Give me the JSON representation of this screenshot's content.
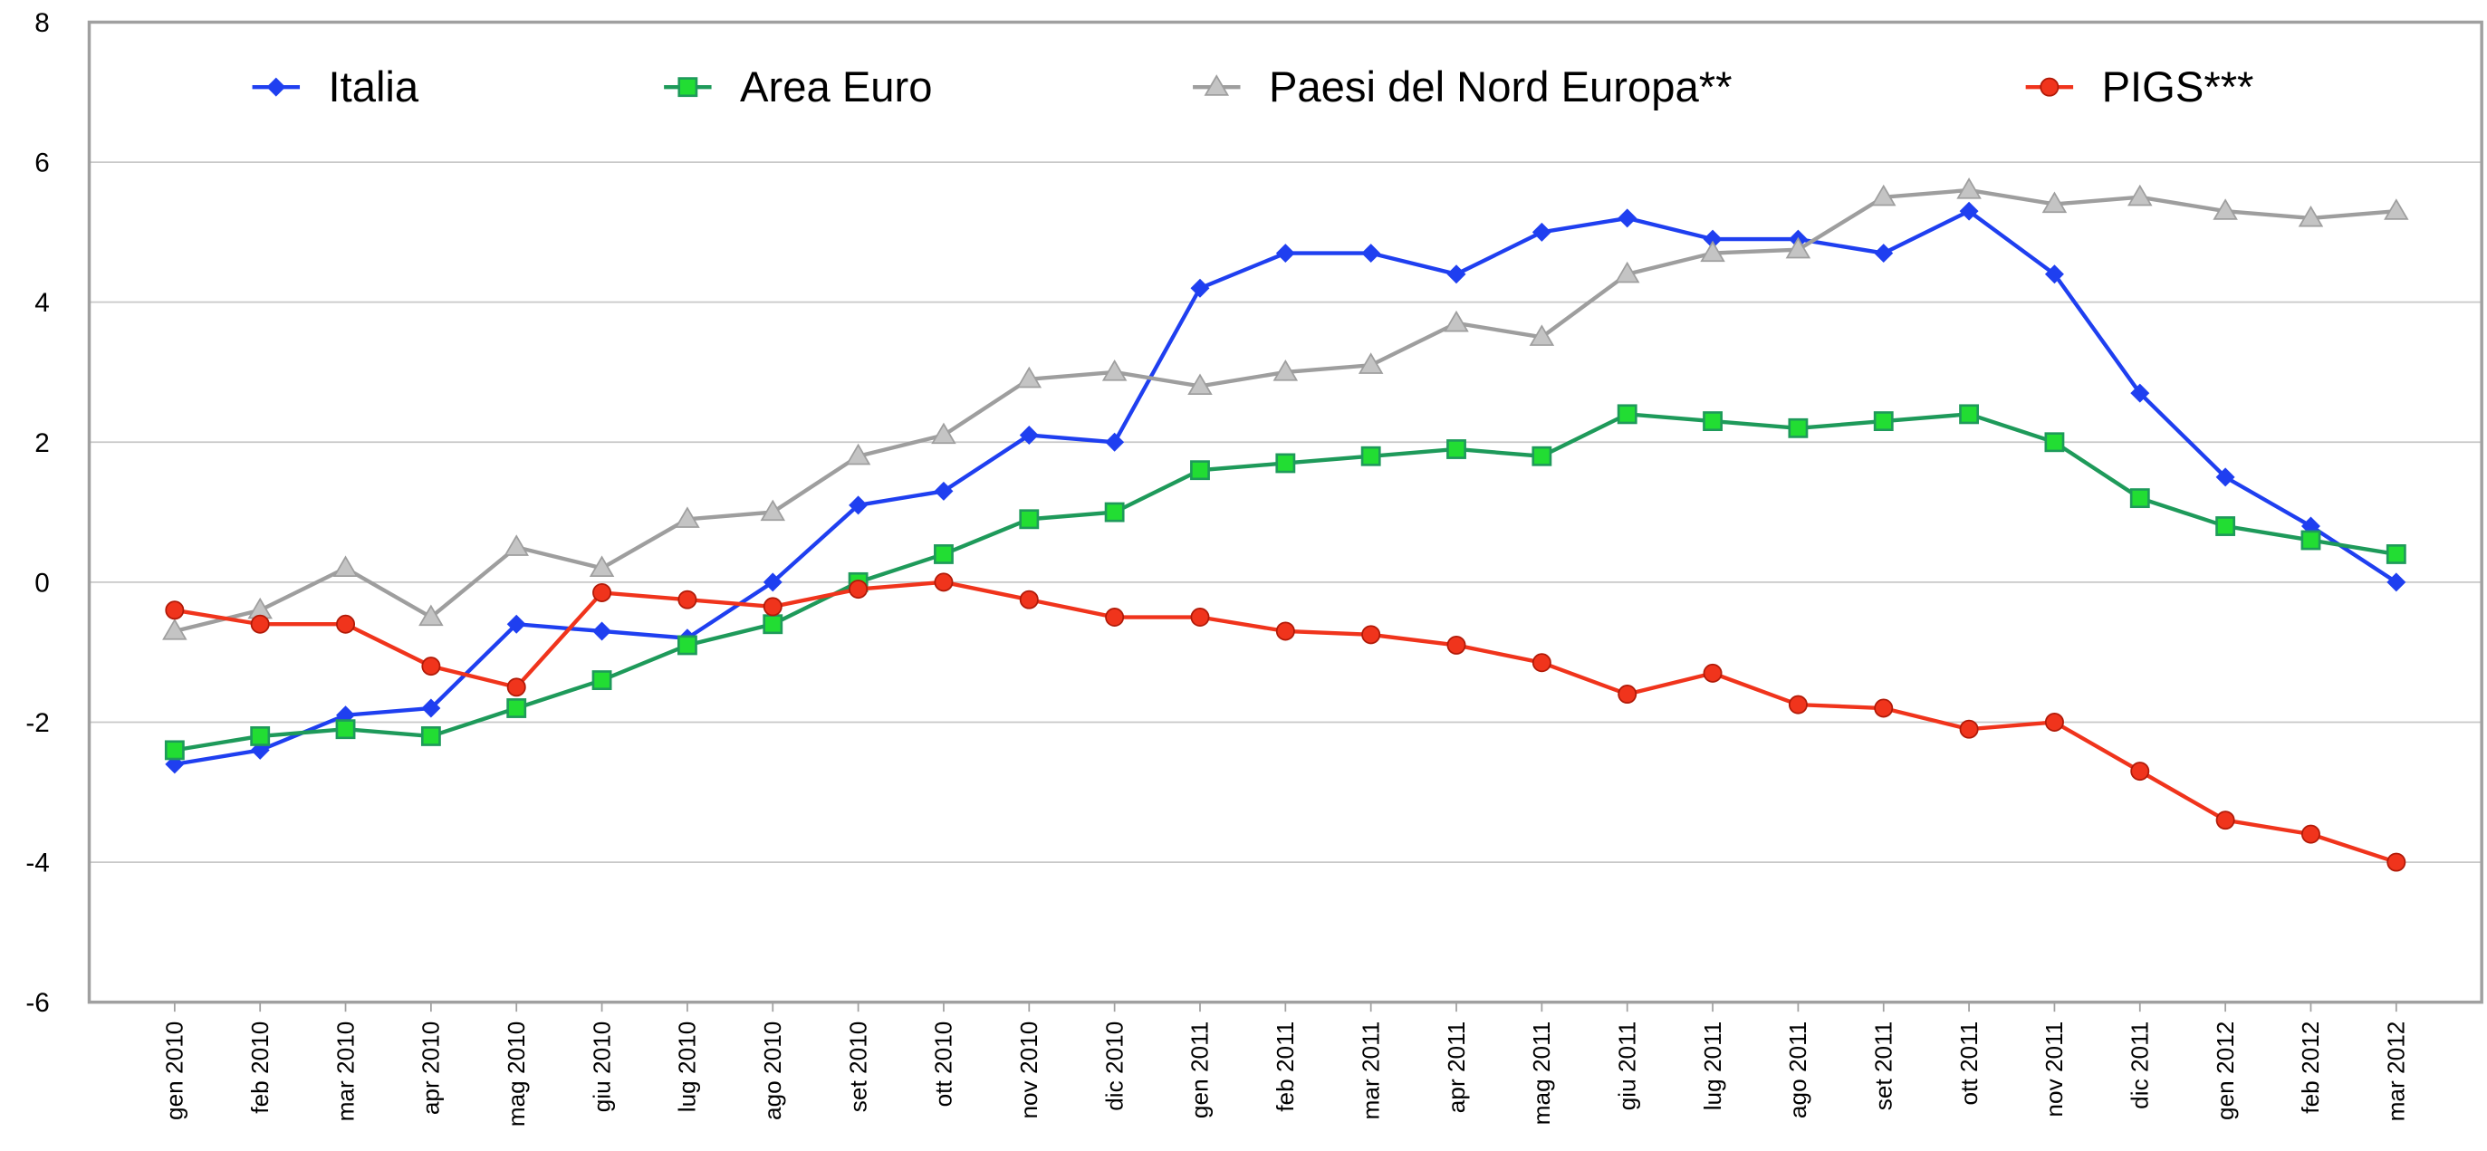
{
  "chart_data": {
    "type": "line",
    "categories": [
      "gen 2010",
      "feb 2010",
      "mar 2010",
      "apr 2010",
      "mag 2010",
      "giu 2010",
      "lug 2010",
      "ago 2010",
      "set 2010",
      "ott 2010",
      "nov 2010",
      "dic 2010",
      "gen 2011",
      "feb 2011",
      "mar 2011",
      "apr 2011",
      "mag 2011",
      "giu 2011",
      "lug 2011",
      "ago 2011",
      "set 2011",
      "ott 2011",
      "nov 2011",
      "dic 2011",
      "gen 2012",
      "feb 2012",
      "mar 2012"
    ],
    "series": [
      {
        "name": "Italia",
        "color": "#1f3ff0",
        "marker": "diamond",
        "values": [
          -2.6,
          -2.4,
          -1.9,
          -1.8,
          -0.6,
          -0.7,
          -0.8,
          0,
          1.1,
          1.3,
          2.1,
          2.0,
          4.2,
          4.7,
          4.7,
          4.4,
          5.0,
          5.2,
          4.9,
          4.9,
          4.7,
          5.3,
          4.4,
          2.7,
          1.5,
          0.8,
          0.0
        ]
      },
      {
        "name": "Area Euro",
        "color": "#1e9a5a",
        "marker": "square",
        "values": [
          -2.4,
          -2.2,
          -2.1,
          -2.2,
          -1.8,
          -1.4,
          -0.9,
          -0.6,
          0,
          0.4,
          0.9,
          1.0,
          1.6,
          1.7,
          1.8,
          1.9,
          1.8,
          2.4,
          2.3,
          2.2,
          2.3,
          2.4,
          2.0,
          1.2,
          0.8,
          0.6,
          0.4
        ]
      },
      {
        "name": "Paesi del Nord Europa**",
        "color": "#9e9e9e",
        "marker": "triangle",
        "values": [
          -0.7,
          -0.4,
          0.2,
          -0.5,
          0.5,
          0.2,
          0.9,
          1.0,
          1.8,
          2.1,
          2.9,
          3.0,
          2.8,
          3.0,
          3.1,
          3.7,
          3.5,
          4.4,
          4.7,
          4.75,
          5.5,
          5.6,
          5.4,
          5.5,
          5.3,
          5.2,
          5.3
        ]
      },
      {
        "name": "PIGS***",
        "color": "#f0341c",
        "marker": "circle",
        "values": [
          -0.4,
          -0.6,
          -0.6,
          -1.2,
          -1.5,
          -0.15,
          -0.25,
          -0.35,
          -0.1,
          0,
          -0.25,
          -0.5,
          -0.5,
          -0.7,
          -0.75,
          -0.9,
          -1.15,
          -1.6,
          -1.3,
          -1.75,
          -1.8,
          -2.1,
          -2.0,
          -2.7,
          -3.4,
          -3.6,
          -4.0
        ]
      }
    ],
    "ylim": [
      -6,
      8
    ],
    "yticks": [
      -6,
      -4,
      -2,
      0,
      2,
      4,
      6,
      8
    ],
    "grid": true,
    "legend": "top"
  }
}
